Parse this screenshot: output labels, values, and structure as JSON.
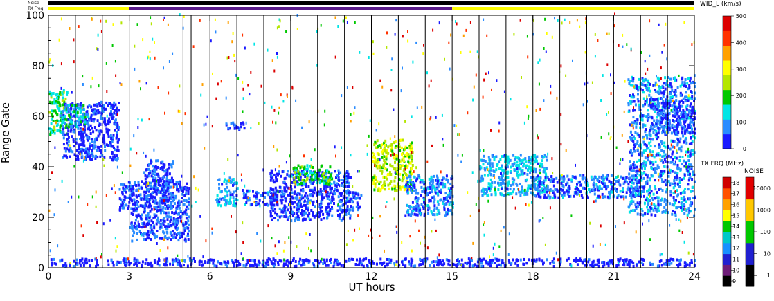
{
  "chart_data": {
    "type": "heatmap",
    "title": "",
    "xlabel": "UT hours",
    "ylabel": "Range Gate",
    "xlim": [
      0,
      24
    ],
    "ylim": [
      0,
      100
    ],
    "x_ticks": [
      "0",
      "3",
      "6",
      "9",
      "12",
      "15",
      "18",
      "21",
      "24"
    ],
    "y_ticks": [
      "0",
      "20",
      "40",
      "60",
      "80",
      "100"
    ],
    "hour_boundaries": [
      1,
      2,
      3,
      4,
      5,
      5.3,
      6,
      7,
      8,
      9,
      10,
      11,
      12,
      13,
      14,
      15,
      16,
      17,
      18,
      19,
      20,
      21,
      22,
      23
    ],
    "status_bars": {
      "noise_label": "Noise",
      "txfreq_label": "TX Freq",
      "noise_color": "#000000",
      "txfreq_segments": [
        {
          "start": 0,
          "end": 3,
          "color": "#ffff00"
        },
        {
          "start": 3,
          "end": 15,
          "color": "#5a1a8a"
        },
        {
          "start": 15,
          "end": 24,
          "color": "#ffff00"
        }
      ]
    },
    "width_colorbar": {
      "title": "WID_L (km/s)",
      "range": [
        0,
        500
      ],
      "ticks": [
        "0",
        "100",
        "200",
        "300",
        "400",
        "500"
      ],
      "colors": [
        "#1a1aff",
        "#2a8cff",
        "#00e5e5",
        "#00c800",
        "#b4e600",
        "#ffff00",
        "#ffa000",
        "#ff3200",
        "#dc0000"
      ]
    },
    "txfreq_colorbar": {
      "title": "TX FRQ (MHz)",
      "ticks": [
        "9",
        "10",
        "11",
        "12",
        "13",
        "14",
        "15",
        "16",
        "17",
        "18"
      ],
      "colors": [
        "#000000",
        "#6e1c78",
        "#2020d0",
        "#1890ff",
        "#00c8c8",
        "#00c800",
        "#ffff00",
        "#ffa000",
        "#ff5000",
        "#d00000"
      ]
    },
    "noise_colorbar": {
      "title": "NOISE",
      "ticks": [
        "1",
        "10",
        "100",
        "1000",
        "10000"
      ],
      "colors": [
        "#000000",
        "#2020d0",
        "#00c800",
        "#ffc800",
        "#e00000"
      ]
    },
    "echo_regions": [
      {
        "t0": 0.0,
        "t1": 0.7,
        "g0": 52,
        "g1": 70,
        "w": 180
      },
      {
        "t0": 0.5,
        "t1": 2.6,
        "g0": 42,
        "g1": 65,
        "w": 30
      },
      {
        "t0": 0.4,
        "t1": 1.5,
        "g0": 55,
        "g1": 64,
        "w": 130
      },
      {
        "t0": 2.6,
        "t1": 3.2,
        "g0": 22,
        "g1": 34,
        "w": 40
      },
      {
        "t0": 3.0,
        "t1": 5.2,
        "g0": 10,
        "g1": 34,
        "w": 50
      },
      {
        "t0": 3.5,
        "t1": 4.6,
        "g0": 25,
        "g1": 42,
        "w": 40
      },
      {
        "t0": 6.2,
        "t1": 7.0,
        "g0": 24,
        "g1": 35,
        "w": 100
      },
      {
        "t0": 6.5,
        "t1": 7.3,
        "g0": 54,
        "g1": 57,
        "w": 40
      },
      {
        "t0": 7.2,
        "t1": 8.5,
        "g0": 24,
        "g1": 30,
        "w": 60
      },
      {
        "t0": 8.2,
        "t1": 11.2,
        "g0": 18,
        "g1": 38,
        "w": 40
      },
      {
        "t0": 9.0,
        "t1": 10.5,
        "g0": 32,
        "g1": 40,
        "w": 190
      },
      {
        "t0": 11.0,
        "t1": 11.6,
        "g0": 22,
        "g1": 30,
        "w": 50
      },
      {
        "t0": 12.0,
        "t1": 13.5,
        "g0": 30,
        "g1": 50,
        "w": 260
      },
      {
        "t0": 13.2,
        "t1": 15.0,
        "g0": 20,
        "g1": 36,
        "w": 70
      },
      {
        "t0": 16.0,
        "t1": 18.5,
        "g0": 28,
        "g1": 44,
        "w": 110
      },
      {
        "t0": 18.0,
        "t1": 22.0,
        "g0": 27,
        "g1": 36,
        "w": 70
      },
      {
        "t0": 21.5,
        "t1": 24.0,
        "g0": 20,
        "g1": 75,
        "w": 80
      },
      {
        "t0": 22.3,
        "t1": 24.0,
        "g0": 52,
        "g1": 66,
        "w": 40
      },
      {
        "t0": 0.0,
        "t1": 24.0,
        "g0": 0,
        "g1": 3,
        "w": 20
      }
    ]
  }
}
